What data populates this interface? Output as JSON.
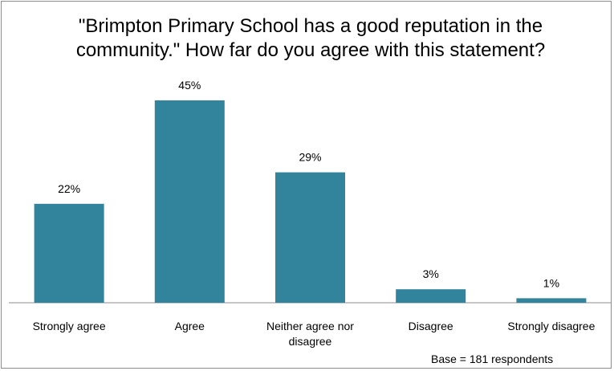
{
  "chart_data": {
    "type": "bar",
    "title": "\"Brimpton Primary School has a good reputation in the community.\"  How far do you agree with this statement?",
    "categories": [
      "Strongly agree",
      "Agree",
      "Neither agree nor disagree",
      "Disagree",
      "Strongly disagree"
    ],
    "category_lines": [
      [
        "Strongly agree"
      ],
      [
        "Agree"
      ],
      [
        "Neither agree nor",
        "disagree"
      ],
      [
        "Disagree"
      ],
      [
        "Strongly disagree"
      ]
    ],
    "values": [
      22,
      45,
      29,
      3,
      1
    ],
    "data_labels": [
      "22%",
      "45%",
      "29%",
      "3%",
      "1%"
    ],
    "ylim": [
      0,
      50
    ],
    "unit": "%",
    "grid": false,
    "bar_color": "#31849b",
    "note": "Base = 181 respondents"
  }
}
